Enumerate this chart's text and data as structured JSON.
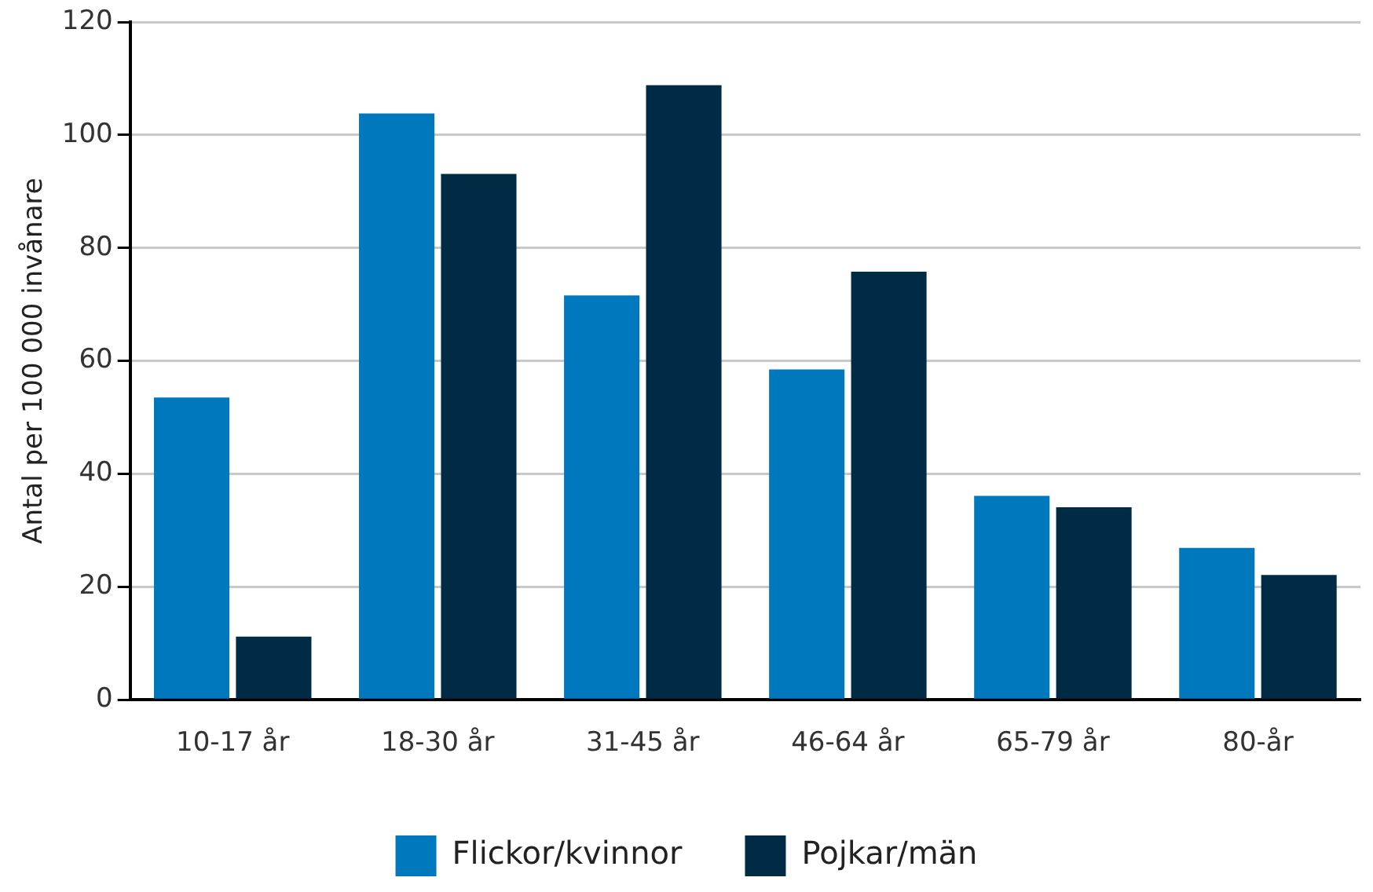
{
  "chart_data": {
    "type": "bar",
    "ylabel": "Antal per 100 000 invånare",
    "categories": [
      "10-17 år",
      "18-30 år",
      "31-45 år",
      "46-64 år",
      "65-79 år",
      "80-år"
    ],
    "series": [
      {
        "name": "Flickor/kvinnor",
        "color": "#0078be",
        "values": [
          53.5,
          103.8,
          71.6,
          58.5,
          36.1,
          26.9
        ]
      },
      {
        "name": "Pojkar/män",
        "color": "#002b45",
        "values": [
          11.2,
          93.1,
          108.8,
          75.8,
          34.1,
          22.1
        ]
      }
    ],
    "ylim": [
      0,
      120
    ],
    "yticks": [
      0,
      20,
      40,
      60,
      80,
      100,
      120
    ],
    "grid": "y",
    "legend": "bottom"
  }
}
